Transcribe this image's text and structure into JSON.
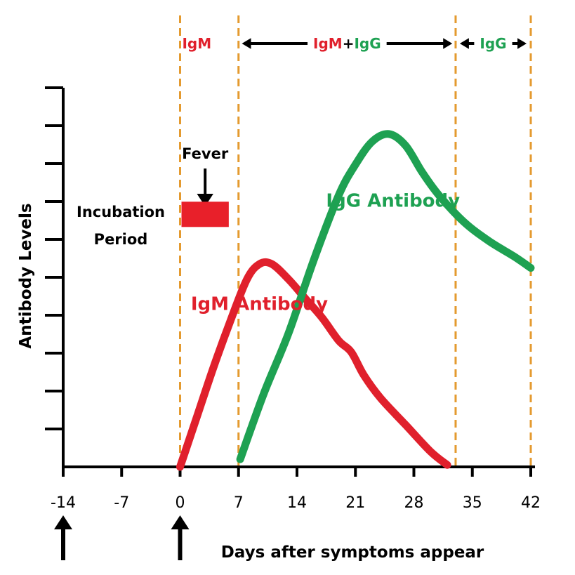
{
  "chart_data": {
    "type": "line",
    "xlabel": "Days after symptoms appear",
    "ylabel": "Antibody Levels",
    "x_ticks": [
      -14,
      -7,
      0,
      7,
      14,
      21,
      28,
      35,
      42
    ],
    "x_tick_labels": [
      "-14",
      "-7",
      "0",
      "7",
      "14",
      "21",
      "28",
      "35",
      "42"
    ],
    "xlim": [
      -14,
      42
    ],
    "ylim": [
      0,
      10
    ],
    "y_tick_count": 10,
    "y_tick_labels": false,
    "grid": false,
    "phase_boundaries": [
      0,
      7,
      33,
      42
    ],
    "phases": [
      {
        "parts": [
          {
            "text": "I",
            "color": "#e0202c"
          },
          {
            "text": "gM",
            "color": "#e0202c"
          }
        ],
        "x": 2,
        "arrows": false
      },
      {
        "parts": [
          {
            "text": "I",
            "color": "#e0202c"
          },
          {
            "text": "gM",
            "color": "#e0202c"
          },
          {
            "text": "+",
            "color": "#000000"
          },
          {
            "text": "I",
            "color": "#1ea152"
          },
          {
            "text": "gG",
            "color": "#1ea152"
          }
        ],
        "x": 20,
        "arrows": true,
        "from": 7.4,
        "to": 32.6
      },
      {
        "parts": [
          {
            "text": "I",
            "color": "#1ea152"
          },
          {
            "text": "gG",
            "color": "#1ea152"
          }
        ],
        "x": 37.5,
        "arrows": true,
        "from": 33.5,
        "to": 41.5
      }
    ],
    "series": [
      {
        "name": "IgM Antibody",
        "color": "#e0202c",
        "label_x": 9.5,
        "label_y": 4.1,
        "x": [
          0,
          2,
          4,
          6,
          8,
          9.5,
          11,
          13,
          15,
          17,
          19,
          20.5,
          22,
          24,
          27,
          30,
          32
        ],
        "y": [
          0,
          1.3,
          2.6,
          3.8,
          4.9,
          5.3,
          5.3,
          4.9,
          4.4,
          3.9,
          3.3,
          3.0,
          2.4,
          1.8,
          1.1,
          0.4,
          0.05
        ]
      },
      {
        "name": "IgG Antibody",
        "color": "#1ea152",
        "label_x": 25.5,
        "label_y": 6.8,
        "x": [
          7.2,
          10,
          13,
          16,
          19,
          21,
          23,
          25,
          27,
          29,
          31,
          34,
          37,
          40,
          42
        ],
        "y": [
          0.2,
          1.9,
          3.5,
          5.4,
          7.1,
          7.9,
          8.5,
          8.7,
          8.4,
          7.7,
          7.1,
          6.4,
          5.9,
          5.5,
          5.2
        ]
      }
    ],
    "annotations": {
      "fever": "Fever",
      "incubation_line1": "Incubation",
      "incubation_line2": "Period",
      "fever_bar_color": "#e8202a",
      "fever_bar_from": 0,
      "fever_bar_to": 6,
      "fever_bar_level": 6.6,
      "fever_arrow_x": 3,
      "arrows_at": [
        -14,
        0
      ]
    },
    "boundary_color": "#e49a2f"
  }
}
